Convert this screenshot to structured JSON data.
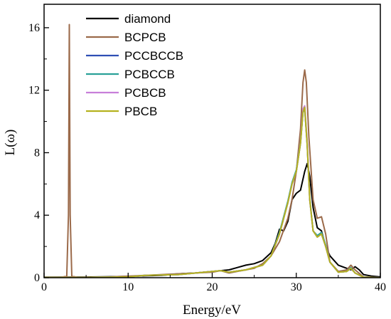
{
  "chart_data": {
    "type": "line",
    "xlabel": "Energy/eV",
    "ylabel": "L(ω)",
    "xlim": [
      0,
      40
    ],
    "ylim": [
      0,
      17.5
    ],
    "x_ticks": [
      0,
      10,
      20,
      30,
      40
    ],
    "y_ticks": [
      0,
      4,
      8,
      12,
      16
    ],
    "grid": false,
    "legend_position": "top-center",
    "series": [
      {
        "name": "diamond",
        "color": "#000000",
        "x": [
          0,
          5,
          10,
          12,
          14,
          16,
          18,
          20,
          21,
          22,
          23,
          24,
          25,
          26,
          27,
          27.5,
          28,
          28.5,
          29,
          29.5,
          30,
          30.5,
          31,
          31.3,
          31.6,
          32,
          32.5,
          33,
          33.5,
          34,
          35,
          36,
          36.5,
          37,
          37.5,
          38,
          39,
          40
        ],
        "y": [
          0.03,
          0.04,
          0.08,
          0.12,
          0.15,
          0.25,
          0.3,
          0.4,
          0.45,
          0.5,
          0.65,
          0.8,
          0.9,
          1.1,
          1.6,
          2.2,
          3.1,
          3.0,
          3.6,
          5.0,
          5.4,
          5.6,
          6.8,
          7.3,
          6.5,
          4.5,
          3.2,
          3.0,
          2.0,
          1.4,
          0.8,
          0.6,
          0.5,
          0.7,
          0.5,
          0.2,
          0.1,
          0.05
        ]
      },
      {
        "name": "BCPCB",
        "color": "#9b6a4a",
        "x": [
          0,
          2,
          2.7,
          2.9,
          3.0,
          3.1,
          3.3,
          4,
          8,
          12,
          16,
          20,
          21,
          22,
          23,
          24,
          25,
          26,
          27,
          28,
          29,
          29.5,
          30,
          30.5,
          30.8,
          31,
          31.2,
          31.5,
          32,
          32.5,
          33,
          33.5,
          34,
          35,
          36,
          36.5,
          37,
          38,
          40
        ],
        "y": [
          0,
          0.02,
          0.1,
          4.0,
          16.2,
          4.0,
          0.1,
          0.02,
          0.05,
          0.15,
          0.25,
          0.35,
          0.45,
          0.3,
          0.4,
          0.5,
          0.6,
          0.9,
          1.4,
          2.3,
          3.8,
          5.0,
          6.8,
          9.5,
          12.5,
          13.3,
          12.5,
          9.0,
          5.0,
          3.8,
          3.9,
          2.8,
          1.0,
          0.4,
          0.5,
          0.8,
          0.5,
          0.05,
          0
        ]
      },
      {
        "name": "PCCBCCB",
        "color": "#2f4fb5",
        "x": [
          0,
          5,
          10,
          12,
          16,
          20,
          21,
          22,
          24,
          26,
          27,
          28,
          29,
          29.5,
          30,
          30.5,
          30.8,
          31,
          31.3,
          31.6,
          32,
          32.5,
          33,
          33.5,
          34,
          35,
          36,
          36.5,
          37,
          38,
          40
        ],
        "y": [
          0.02,
          0.02,
          0.05,
          0.15,
          0.2,
          0.4,
          0.45,
          0.35,
          0.5,
          0.8,
          1.4,
          2.8,
          4.8,
          6.0,
          6.8,
          8.6,
          10.6,
          10.8,
          8.5,
          5.0,
          3.0,
          2.6,
          2.8,
          2.0,
          1.0,
          0.35,
          0.4,
          0.6,
          0.3,
          0.03,
          0
        ]
      },
      {
        "name": "PCBCCB",
        "color": "#2aa198",
        "x": [
          0,
          5,
          10,
          12,
          16,
          20,
          21,
          22,
          24,
          26,
          27,
          28,
          29,
          29.5,
          30,
          30.5,
          30.8,
          31,
          31.3,
          31.6,
          32,
          32.5,
          33,
          33.5,
          34,
          35,
          36,
          36.5,
          37,
          38,
          40
        ],
        "y": [
          0.02,
          0.02,
          0.05,
          0.15,
          0.2,
          0.4,
          0.45,
          0.35,
          0.5,
          0.8,
          1.4,
          2.9,
          4.9,
          6.1,
          6.9,
          8.7,
          10.7,
          10.9,
          8.6,
          5.1,
          3.0,
          2.7,
          2.9,
          2.1,
          1.0,
          0.35,
          0.4,
          0.65,
          0.3,
          0.03,
          0
        ]
      },
      {
        "name": "PCBCB",
        "color": "#c77fd9",
        "x": [
          0,
          5,
          10,
          12,
          16,
          20,
          21,
          22,
          24,
          26,
          27,
          28,
          29,
          29.5,
          30,
          30.5,
          30.8,
          31,
          31.3,
          31.6,
          32,
          32.5,
          33,
          33.5,
          34,
          35,
          36,
          36.5,
          37,
          38,
          40
        ],
        "y": [
          0.02,
          0.02,
          0.05,
          0.15,
          0.2,
          0.4,
          0.45,
          0.35,
          0.5,
          0.8,
          1.4,
          2.8,
          4.8,
          6.0,
          6.8,
          8.7,
          10.8,
          11.0,
          8.7,
          5.0,
          3.0,
          2.6,
          2.8,
          2.0,
          1.0,
          0.35,
          0.4,
          0.6,
          0.3,
          0.03,
          0
        ]
      },
      {
        "name": "PBCB",
        "color": "#b5b21f",
        "x": [
          0,
          5,
          10,
          12,
          16,
          20,
          21,
          22,
          24,
          26,
          27,
          28,
          29,
          29.5,
          30,
          30.5,
          30.8,
          31,
          31.3,
          31.6,
          32,
          32.5,
          33,
          33.5,
          34,
          35,
          36,
          36.5,
          37,
          38,
          40
        ],
        "y": [
          0.02,
          0.02,
          0.05,
          0.15,
          0.2,
          0.4,
          0.45,
          0.35,
          0.5,
          0.8,
          1.4,
          2.8,
          4.8,
          6.0,
          6.8,
          8.6,
          10.6,
          10.9,
          8.5,
          5.0,
          3.0,
          2.6,
          2.8,
          2.0,
          1.0,
          0.35,
          0.4,
          0.6,
          0.3,
          0.03,
          0
        ]
      }
    ]
  }
}
